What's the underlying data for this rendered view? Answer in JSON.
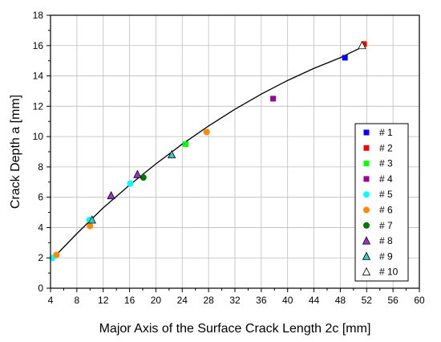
{
  "chart_data": {
    "type": "scatter",
    "xlabel": "Major Axis of the Surface Crack Length 2c [mm]",
    "ylabel": "Crack Depth a [mm]",
    "xlim": [
      4,
      60
    ],
    "ylim": [
      0,
      18
    ],
    "xticks": [
      "4",
      "8",
      "12",
      "16",
      "20",
      "24",
      "28",
      "32",
      "36",
      "40",
      "44",
      "48",
      "52",
      "56",
      "60"
    ],
    "yticks": [
      "0",
      "2",
      "4",
      "6",
      "8",
      "10",
      "12",
      "14",
      "16",
      "18"
    ],
    "grid": true,
    "legend_position": "bottom-right",
    "series": [
      {
        "name": "# 1",
        "marker": "square",
        "color": "#0000ff",
        "points": [
          {
            "x": 48.7,
            "y": 15.2
          }
        ]
      },
      {
        "name": "# 2",
        "marker": "square",
        "color": "#ff0000",
        "points": [
          {
            "x": 51.6,
            "y": 16.1
          }
        ]
      },
      {
        "name": "# 3",
        "marker": "square",
        "color": "#00ff00",
        "points": [
          {
            "x": 24.5,
            "y": 9.5
          }
        ]
      },
      {
        "name": "# 4",
        "marker": "square",
        "color": "#990099",
        "points": [
          {
            "x": 37.8,
            "y": 12.5
          }
        ]
      },
      {
        "name": "# 5",
        "marker": "circle",
        "color": "#00ffff",
        "points": [
          {
            "x": 4.3,
            "y": 2.0
          },
          {
            "x": 9.9,
            "y": 4.5
          },
          {
            "x": 16.1,
            "y": 6.9
          }
        ]
      },
      {
        "name": "# 6",
        "marker": "circle",
        "color": "#ff8800",
        "points": [
          {
            "x": 4.9,
            "y": 2.2
          },
          {
            "x": 10.0,
            "y": 4.1
          },
          {
            "x": 27.7,
            "y": 10.3
          }
        ]
      },
      {
        "name": "# 7",
        "marker": "circle",
        "color": "#007700",
        "points": [
          {
            "x": 18.1,
            "y": 7.3
          }
        ]
      },
      {
        "name": "# 8",
        "marker": "triangle",
        "color": "#9933cc",
        "points": [
          {
            "x": 13.2,
            "y": 6.1
          },
          {
            "x": 17.2,
            "y": 7.5
          }
        ]
      },
      {
        "name": "# 9",
        "marker": "triangle",
        "color": "#33cccc",
        "points": [
          {
            "x": 10.3,
            "y": 4.5
          },
          {
            "x": 22.4,
            "y": 8.8
          }
        ]
      },
      {
        "name": "# 10",
        "marker": "triangle",
        "color": "#ffffff",
        "points": [
          {
            "x": 51.3,
            "y": 16.0
          }
        ]
      }
    ],
    "fit_curve": {
      "color": "#000000",
      "points": [
        {
          "x": 4.2,
          "y": 1.9
        },
        {
          "x": 8,
          "y": 3.6
        },
        {
          "x": 12,
          "y": 5.3
        },
        {
          "x": 16,
          "y": 6.8
        },
        {
          "x": 20,
          "y": 8.2
        },
        {
          "x": 24,
          "y": 9.5
        },
        {
          "x": 28,
          "y": 10.7
        },
        {
          "x": 32,
          "y": 11.8
        },
        {
          "x": 36,
          "y": 12.8
        },
        {
          "x": 40,
          "y": 13.7
        },
        {
          "x": 44,
          "y": 14.5
        },
        {
          "x": 48,
          "y": 15.2
        },
        {
          "x": 51.3,
          "y": 15.9
        }
      ]
    }
  }
}
